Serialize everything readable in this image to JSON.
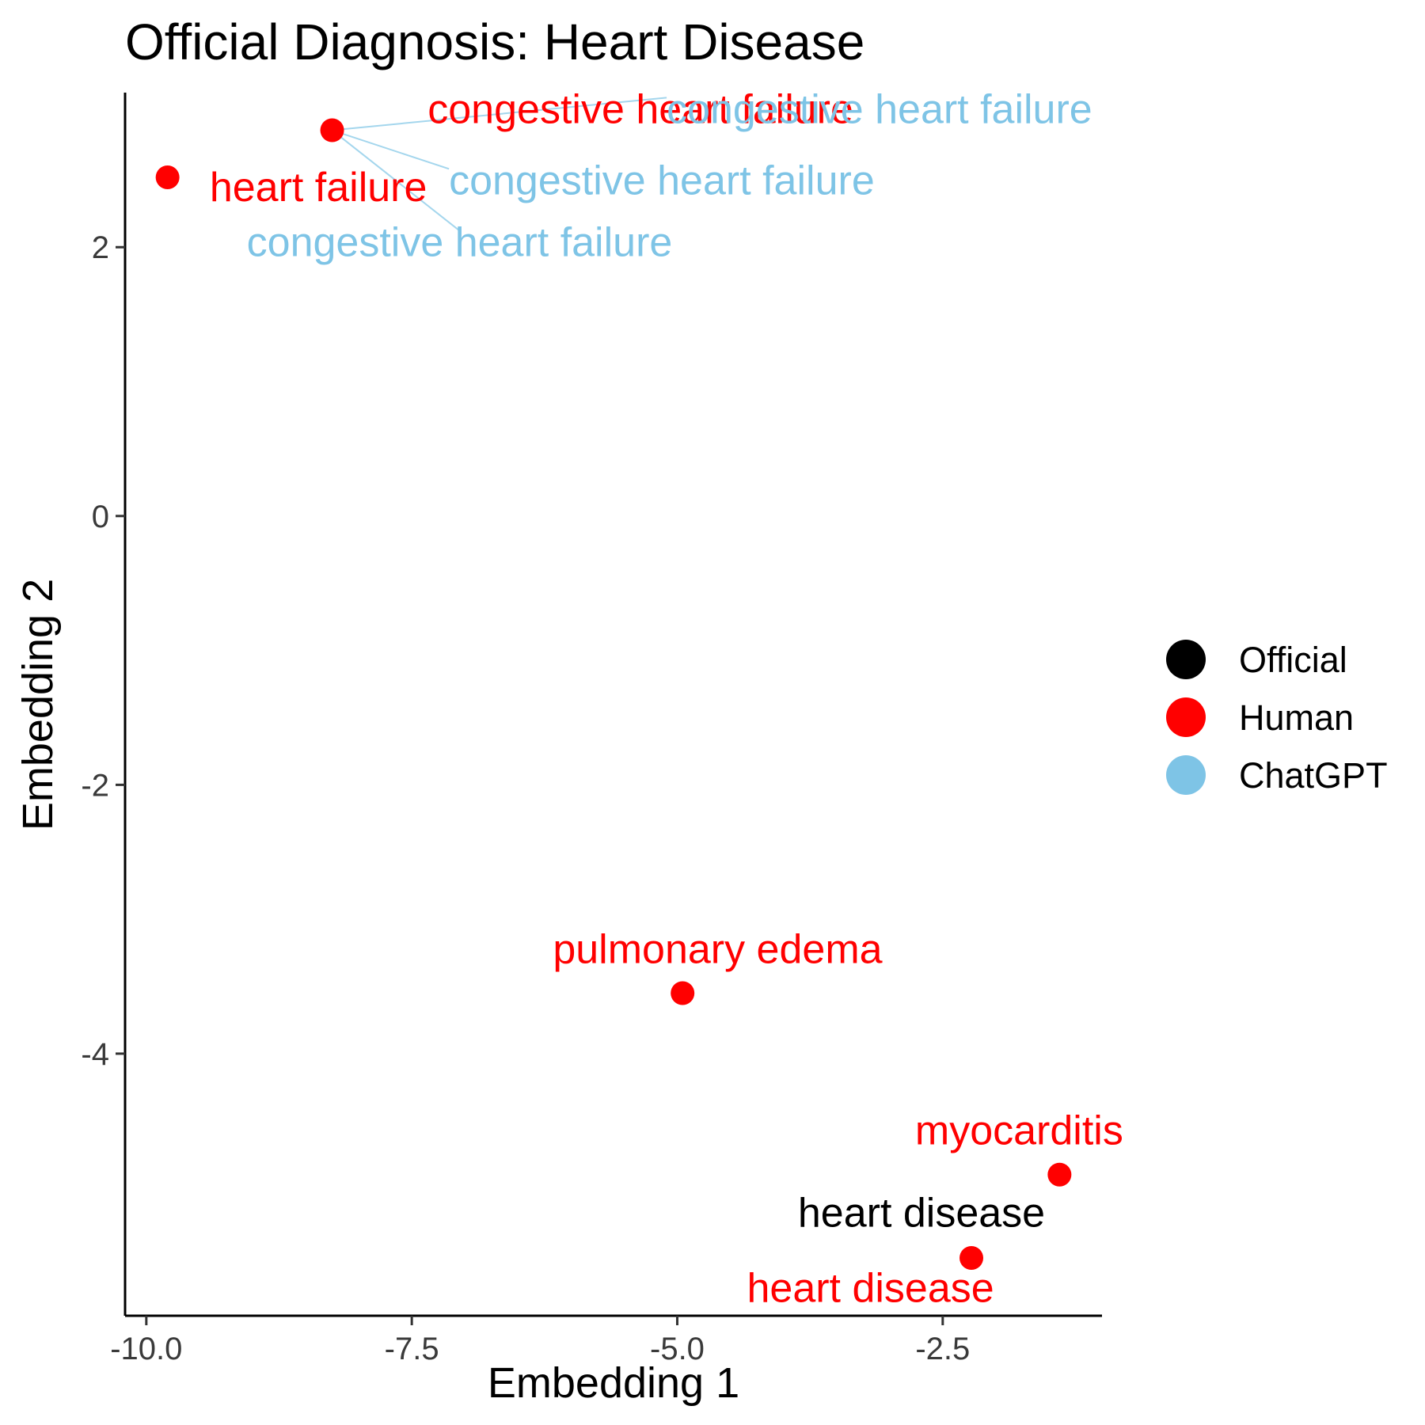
{
  "chart_data": {
    "type": "scatter",
    "title": "Official Diagnosis: Heart Disease",
    "xlabel": "Embedding 1",
    "ylabel": "Embedding 2",
    "xlim": [
      -10.2,
      -1.0
    ],
    "ylim": [
      -5.95,
      3.15
    ],
    "x_ticks": [
      -10.0,
      -7.5,
      -5.0,
      -2.5
    ],
    "x_tick_labels": [
      "-10.0",
      "-7.5",
      "-5.0",
      "-2.5"
    ],
    "y_ticks": [
      2,
      0,
      -2,
      -4
    ],
    "y_tick_labels": [
      "2",
      "0",
      "-2",
      "-4"
    ],
    "grid": false,
    "legend": {
      "position": "right",
      "entries": [
        {
          "name": "Official",
          "color": "#000000"
        },
        {
          "name": "Human",
          "color": "#ff0000"
        },
        {
          "name": "ChatGPT",
          "color": "#7ec4e6"
        }
      ]
    },
    "points": [
      {
        "x": -8.25,
        "y": 2.87,
        "group": "Human",
        "label": "congestive heart failure",
        "label_x": -7.35,
        "label_y": 3.03,
        "label_anchor": "start"
      },
      {
        "x": -8.25,
        "y": 2.87,
        "group": "ChatGPT",
        "label": "congestive heart failure",
        "label_x": -5.1,
        "label_y": 3.03,
        "label_anchor": "start",
        "leader": true
      },
      {
        "x": -8.25,
        "y": 2.87,
        "group": "ChatGPT",
        "label": "congestive heart failure",
        "label_x": -7.15,
        "label_y": 2.5,
        "label_anchor": "start",
        "leader": true
      },
      {
        "x": -8.25,
        "y": 2.87,
        "group": "ChatGPT",
        "label": "congestive heart failure",
        "label_x": -7.05,
        "label_y": 2.04,
        "label_anchor": "middle",
        "leader": true
      },
      {
        "x": -9.8,
        "y": 2.52,
        "group": "Human",
        "label": "heart failure",
        "label_x": -8.38,
        "label_y": 2.45,
        "label_anchor": "middle"
      },
      {
        "x": -4.95,
        "y": -3.55,
        "group": "Human",
        "label": "pulmonary edema",
        "label_x": -4.62,
        "label_y": -3.22,
        "label_anchor": "middle"
      },
      {
        "x": -1.4,
        "y": -4.9,
        "group": "Human",
        "label": "myocarditis",
        "label_x": -1.78,
        "label_y": -4.57,
        "label_anchor": "middle"
      },
      {
        "x": -2.23,
        "y": -5.52,
        "group": "Human",
        "label": "heart disease",
        "label_x": -3.18,
        "label_y": -5.74,
        "label_anchor": "middle"
      },
      {
        "x": -2.23,
        "y": -5.52,
        "group": "Official",
        "label": "heart disease",
        "label_x": -2.7,
        "label_y": -5.18,
        "label_anchor": "middle",
        "no_marker": true
      }
    ]
  }
}
